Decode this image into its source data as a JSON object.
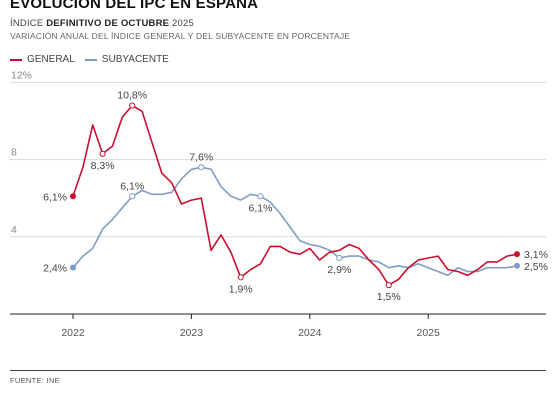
{
  "header": {
    "title": "EVOLUCIÓN DEL IPC EN ESPAÑA",
    "subtitle_pre": "ÍNDICE ",
    "subtitle_bold": "DEFINITIVO DE OCTUBRE",
    "subtitle_post": " 2025",
    "subtitle2": "VARIACIÓN ANUAL DEL ÍNDICE GENERAL Y DEL SUBYACENTE EN PORCENTAJE"
  },
  "legend": [
    {
      "label": "GENERAL",
      "color": "#c8102e"
    },
    {
      "label": "SUBYACENTE",
      "color": "#7f9cc4"
    }
  ],
  "source": "FUENTE: INE",
  "chart_data": {
    "type": "line",
    "x_start": "2022-01",
    "x_end": "2025-10",
    "x_ticks": [
      "2022",
      "2023",
      "2024",
      "2025"
    ],
    "y_ticks": [
      4,
      8,
      12
    ],
    "y_tick_labels": [
      "4",
      "8",
      "12%"
    ],
    "ylim": [
      0,
      12.5
    ],
    "grid": true,
    "series": [
      {
        "name": "GENERAL",
        "color": "#c8102e",
        "x": [
          "2022-01",
          "2022-02",
          "2022-03",
          "2022-04",
          "2022-05",
          "2022-06",
          "2022-07",
          "2022-08",
          "2022-09",
          "2022-10",
          "2022-11",
          "2022-12",
          "2023-01",
          "2023-02",
          "2023-03",
          "2023-04",
          "2023-05",
          "2023-06",
          "2023-07",
          "2023-08",
          "2023-09",
          "2023-10",
          "2023-11",
          "2023-12",
          "2024-01",
          "2024-02",
          "2024-03",
          "2024-04",
          "2024-05",
          "2024-06",
          "2024-07",
          "2024-08",
          "2024-09",
          "2024-10",
          "2024-11",
          "2024-12",
          "2025-01",
          "2025-02",
          "2025-03",
          "2025-04",
          "2025-05",
          "2025-06",
          "2025-07",
          "2025-08",
          "2025-09",
          "2025-10"
        ],
        "values": [
          6.1,
          7.6,
          9.8,
          8.3,
          8.7,
          10.2,
          10.8,
          10.5,
          8.9,
          7.3,
          6.8,
          5.7,
          5.9,
          6.0,
          3.3,
          4.1,
          3.2,
          1.9,
          2.3,
          2.6,
          3.5,
          3.5,
          3.2,
          3.1,
          3.4,
          2.8,
          3.2,
          3.3,
          3.6,
          3.4,
          2.8,
          2.3,
          1.5,
          1.8,
          2.4,
          2.8,
          2.9,
          3.0,
          2.3,
          2.2,
          2.0,
          2.3,
          2.7,
          2.7,
          3.0,
          3.1
        ]
      },
      {
        "name": "SUBYACENTE",
        "color": "#7f9cc4",
        "x": [
          "2022-01",
          "2022-02",
          "2022-03",
          "2022-04",
          "2022-05",
          "2022-06",
          "2022-07",
          "2022-08",
          "2022-09",
          "2022-10",
          "2022-11",
          "2022-12",
          "2023-01",
          "2023-02",
          "2023-03",
          "2023-04",
          "2023-05",
          "2023-06",
          "2023-07",
          "2023-08",
          "2023-09",
          "2023-10",
          "2023-11",
          "2023-12",
          "2024-01",
          "2024-02",
          "2024-03",
          "2024-04",
          "2024-05",
          "2024-06",
          "2024-07",
          "2024-08",
          "2024-09",
          "2024-10",
          "2024-11",
          "2024-12",
          "2025-01",
          "2025-02",
          "2025-03",
          "2025-04",
          "2025-05",
          "2025-06",
          "2025-07",
          "2025-08",
          "2025-09",
          "2025-10"
        ],
        "values": [
          2.4,
          3.0,
          3.4,
          4.4,
          4.9,
          5.5,
          6.1,
          6.4,
          6.2,
          6.2,
          6.3,
          7.0,
          7.5,
          7.6,
          7.5,
          6.6,
          6.1,
          5.9,
          6.2,
          6.1,
          5.8,
          5.2,
          4.5,
          3.8,
          3.6,
          3.5,
          3.3,
          2.9,
          3.0,
          3.0,
          2.8,
          2.7,
          2.4,
          2.5,
          2.4,
          2.6,
          2.4,
          2.2,
          2.0,
          2.4,
          2.2,
          2.2,
          2.4,
          2.4,
          2.4,
          2.5
        ]
      }
    ],
    "annotations": [
      {
        "series": "GENERAL",
        "x": "2022-01",
        "label": "6,1%",
        "pos": "left",
        "end": true
      },
      {
        "series": "GENERAL",
        "x": "2022-04",
        "label": "8,3%",
        "pos": "below"
      },
      {
        "series": "GENERAL",
        "x": "2022-07",
        "label": "10,8%",
        "pos": "above"
      },
      {
        "series": "GENERAL",
        "x": "2023-06",
        "label": "1,9%",
        "pos": "below"
      },
      {
        "series": "GENERAL",
        "x": "2024-09",
        "label": "1,5%",
        "pos": "below"
      },
      {
        "series": "GENERAL",
        "x": "2025-10",
        "label": "3,1%",
        "pos": "right",
        "end": true
      },
      {
        "series": "SUBYACENTE",
        "x": "2022-01",
        "label": "2,4%",
        "pos": "left",
        "end": true
      },
      {
        "series": "SUBYACENTE",
        "x": "2022-07",
        "label": "6,1%",
        "pos": "above"
      },
      {
        "series": "SUBYACENTE",
        "x": "2023-02",
        "label": "7,6%",
        "pos": "above"
      },
      {
        "series": "SUBYACENTE",
        "x": "2023-08",
        "label": "6,1%",
        "pos": "below"
      },
      {
        "series": "SUBYACENTE",
        "x": "2024-04",
        "label": "2,9%",
        "pos": "below"
      },
      {
        "series": "SUBYACENTE",
        "x": "2025-10",
        "label": "2,5%",
        "pos": "right",
        "end": true
      }
    ]
  }
}
